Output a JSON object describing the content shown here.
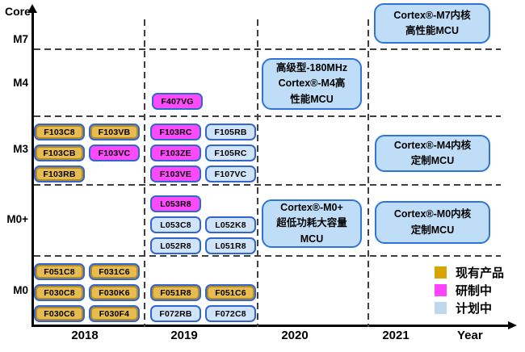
{
  "axis": {
    "core_label": "Core",
    "year_label": "Year"
  },
  "colors": {
    "existing": "#E6BB50",
    "developing": "#FD4BFC",
    "planned": "#CFE3F9",
    "chip_border": "#3366CC",
    "box_fill": "#BFDDF6",
    "box_border": "#2E75D6",
    "legend_existing": "#D8A400",
    "legend_developing": "#FF42FF",
    "legend_planned": "#BDD7EE"
  },
  "chart_data": {
    "type": "table",
    "title": "",
    "xlabel": "Year",
    "ylabel": "Core",
    "x_categories": [
      "2018",
      "2019",
      "2020",
      "2021"
    ],
    "y_categories": [
      "M7",
      "M4",
      "M3",
      "M0+",
      "M0"
    ],
    "grid": "dashed",
    "legend_position": "bottom-right",
    "legend": [
      {
        "status": "existing",
        "label": "现有产品",
        "color": "#D8A400"
      },
      {
        "status": "developing",
        "label": "研制中",
        "color": "#FF42FF"
      },
      {
        "status": "planned",
        "label": "计划中",
        "color": "#BDD7EE"
      }
    ],
    "chip_groups": [
      {
        "id": "m4-2019",
        "core": "M4",
        "year": "2019",
        "rows": [
          [
            {
              "label": "F407VG",
              "status": "developing"
            }
          ]
        ]
      },
      {
        "id": "m3-2018",
        "core": "M3",
        "year": "2018",
        "rows": [
          [
            {
              "label": "F103C8",
              "status": "existing"
            },
            {
              "label": "F103VB",
              "status": "existing"
            }
          ],
          [
            {
              "label": "F103CB",
              "status": "existing"
            },
            {
              "label": "F103VC",
              "status": "developing"
            }
          ],
          [
            {
              "label": "F103RB",
              "status": "existing"
            }
          ]
        ]
      },
      {
        "id": "m3-2019",
        "core": "M3",
        "year": "2019",
        "rows": [
          [
            {
              "label": "F103RC",
              "status": "developing"
            },
            {
              "label": "F105RB",
              "status": "planned"
            }
          ],
          [
            {
              "label": "F103ZE",
              "status": "developing"
            },
            {
              "label": "F105RC",
              "status": "planned"
            }
          ],
          [
            {
              "label": "F103VE",
              "status": "developing"
            },
            {
              "label": "F107VC",
              "status": "planned"
            }
          ]
        ]
      },
      {
        "id": "m0plus-2019",
        "core": "M0+",
        "year": "2019",
        "rows": [
          [
            {
              "label": "L053R8",
              "status": "developing"
            }
          ],
          [
            {
              "label": "L053C8",
              "status": "planned"
            },
            {
              "label": "L052K8",
              "status": "planned"
            }
          ],
          [
            {
              "label": "L052R8",
              "status": "planned"
            },
            {
              "label": "L051R8",
              "status": "planned"
            }
          ]
        ]
      },
      {
        "id": "m0-2018",
        "core": "M0",
        "year": "2018",
        "rows": [
          [
            {
              "label": "F051C8",
              "status": "existing"
            },
            {
              "label": "F031C6",
              "status": "existing"
            }
          ],
          [
            {
              "label": "F030C8",
              "status": "existing"
            },
            {
              "label": "F030K6",
              "status": "existing"
            }
          ],
          [
            {
              "label": "F030C6",
              "status": "existing"
            },
            {
              "label": "F030F4",
              "status": "existing"
            }
          ]
        ]
      },
      {
        "id": "m0-2019",
        "core": "M0",
        "year": "2019",
        "rows": [
          [
            {
              "label": "F051R8",
              "status": "existing"
            },
            {
              "label": "F051C6",
              "status": "existing"
            }
          ],
          [
            {
              "label": "F072RB",
              "status": "planned"
            },
            {
              "label": "F072C8",
              "status": "planned"
            }
          ]
        ]
      }
    ],
    "annotations": [
      {
        "id": "m7-2021",
        "core": "M7",
        "year": "2021",
        "lines": [
          "Cortex®-M7内核",
          "高性能MCU"
        ]
      },
      {
        "id": "m4-2020",
        "core": "M4",
        "year": "2020",
        "lines": [
          "高级型-180MHz",
          "Cortex®-M4高",
          "性能MCU"
        ]
      },
      {
        "id": "m3-2021",
        "core": "M3",
        "year": "2021",
        "lines": [
          "Cortex®-M4内核",
          "定制MCU"
        ]
      },
      {
        "id": "m0plus-2020",
        "core": "M0+",
        "year": "2020",
        "lines": [
          "Cortex®-M0+",
          "超低功耗大容量",
          "MCU"
        ]
      },
      {
        "id": "m0plus-2021",
        "core": "M0+",
        "year": "2021",
        "lines": [
          "Cortex®-M0内核",
          "定制MCU"
        ]
      }
    ]
  }
}
